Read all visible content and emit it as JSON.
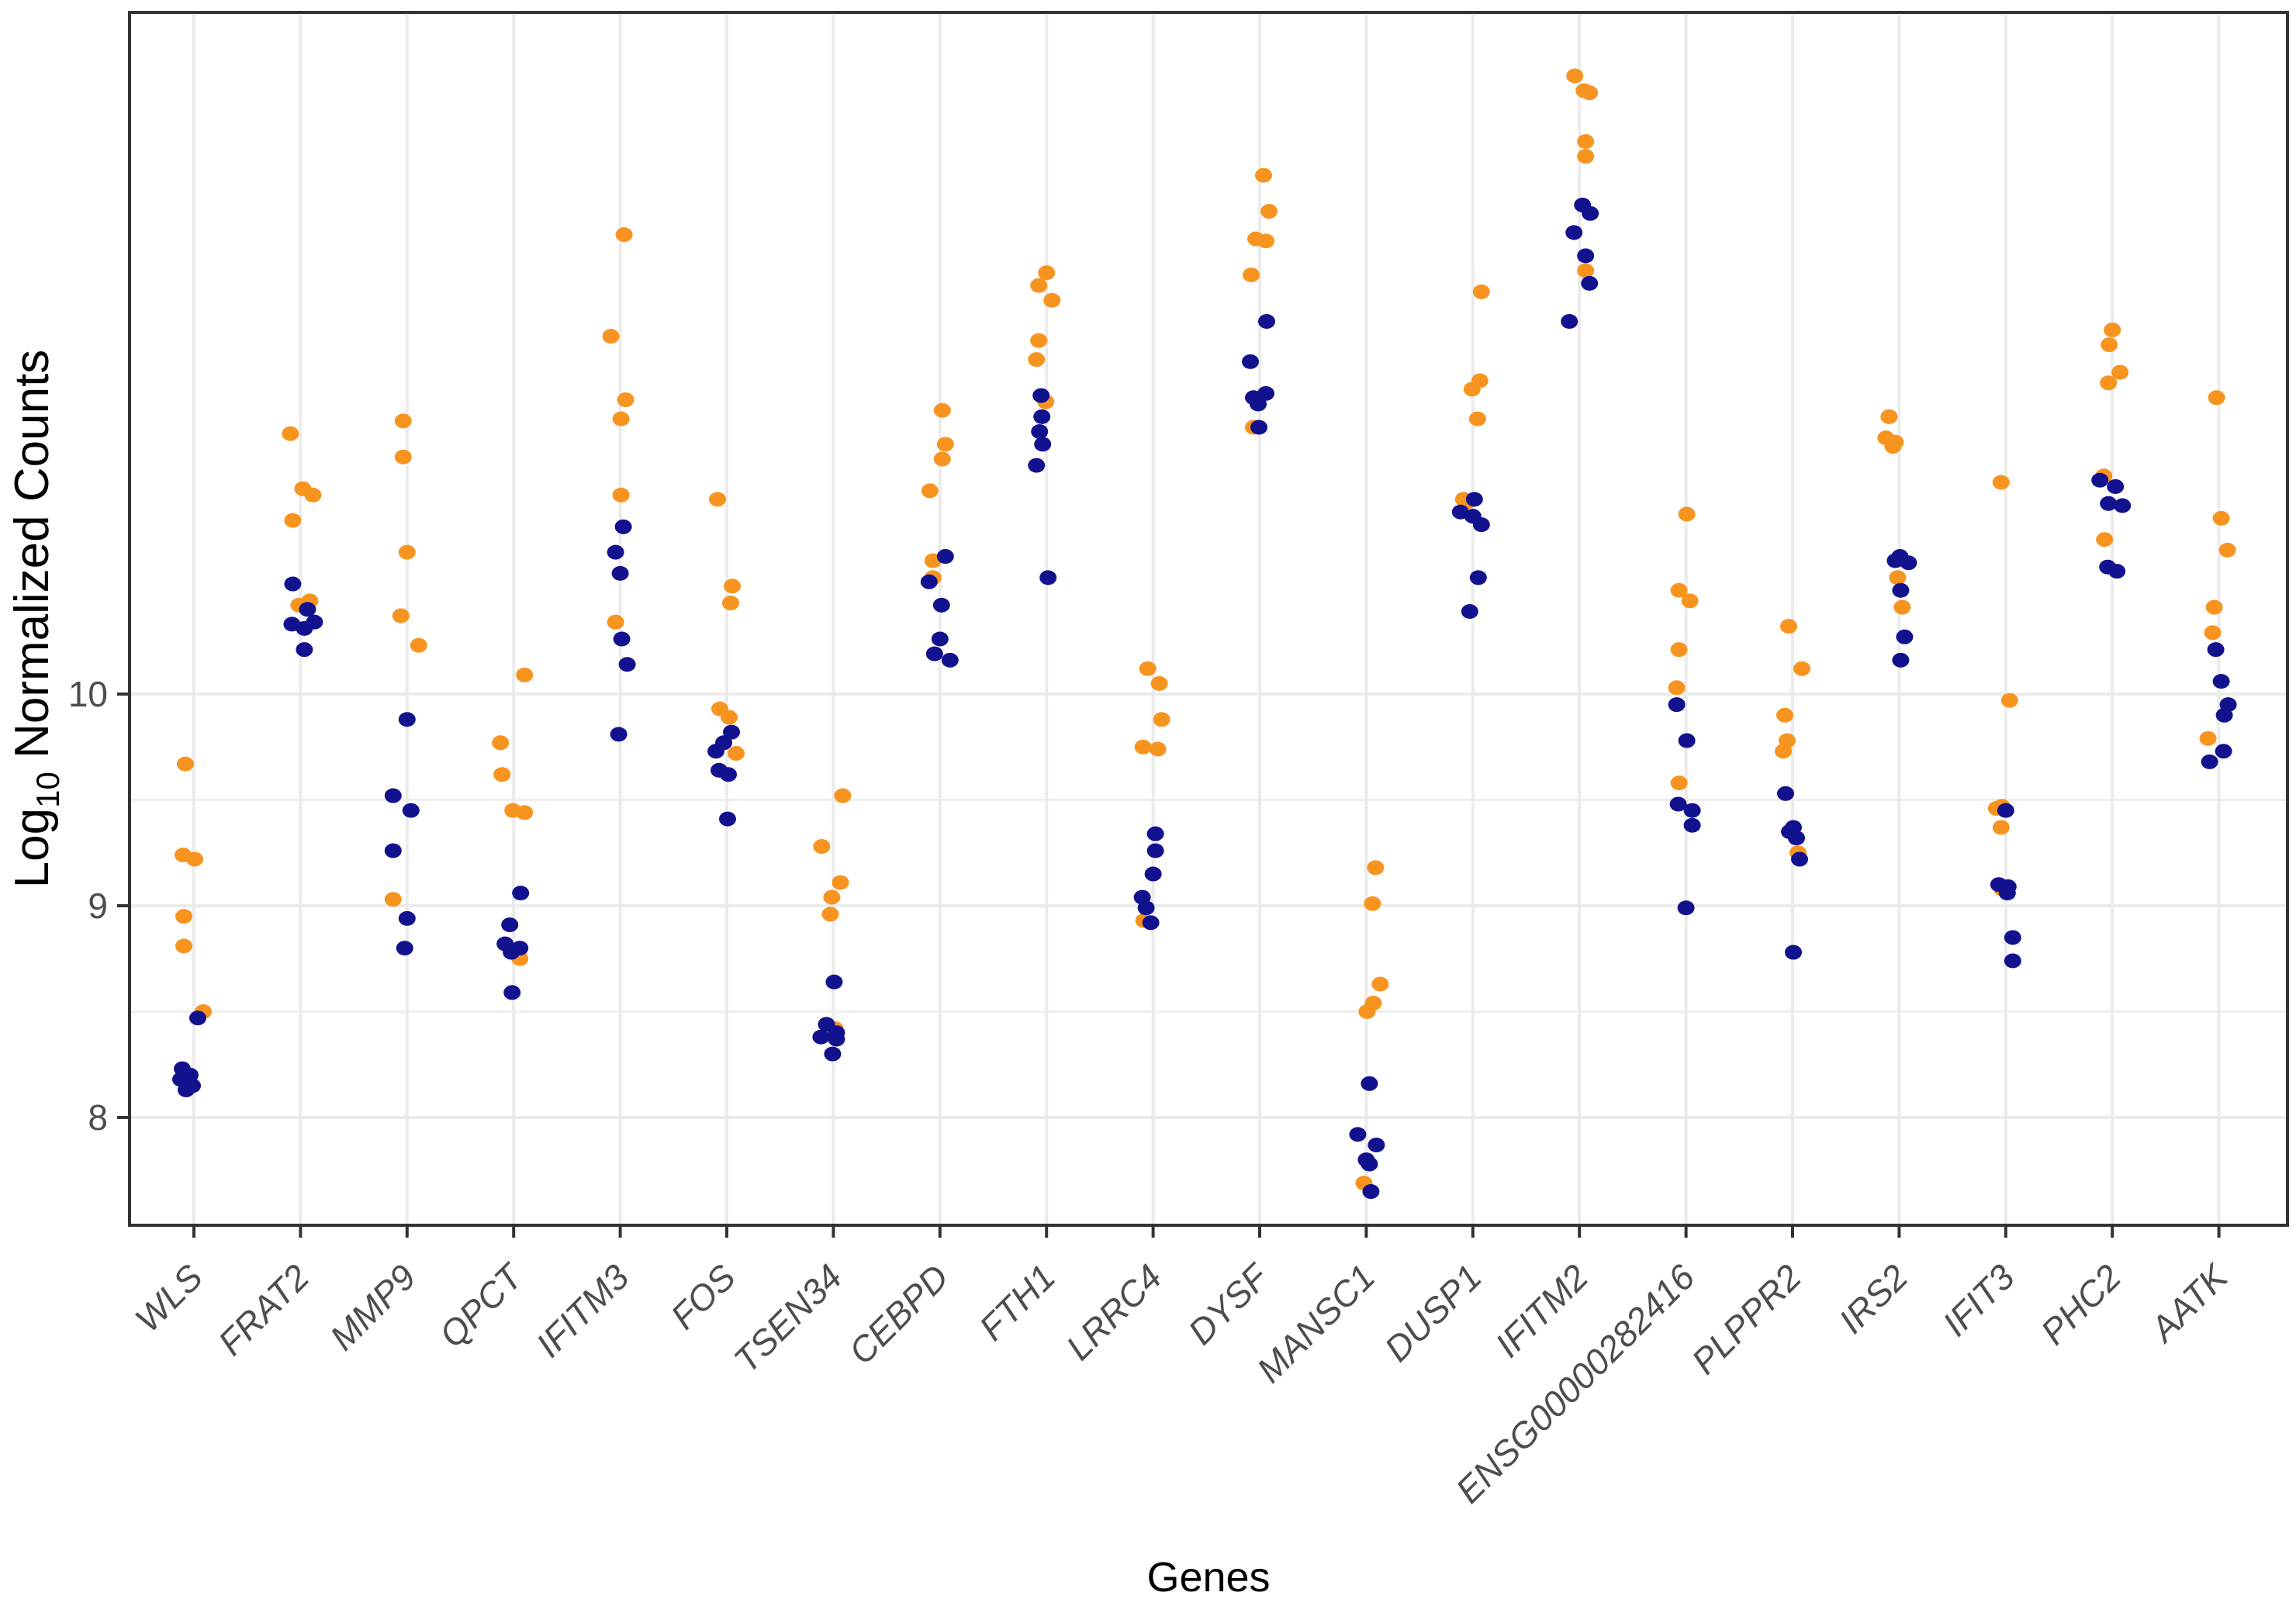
{
  "figure": {
    "ylabel_prefix": "Log",
    "ylabel_sub": "10",
    "ylabel_suffix": " Normalized Counts",
    "xlabel": "Genes"
  },
  "chart_data": {
    "type": "scatter",
    "subtype": "strip-jitter",
    "title": "",
    "xlabel": "Genes",
    "ylabel": "Log10 Normalized Counts",
    "legend": "none",
    "grid": true,
    "y_axis": {
      "ticks": [
        8,
        9,
        10
      ],
      "minor_ticks": [
        8.5,
        9.5
      ],
      "range": [
        7.49,
        13.22
      ]
    },
    "colors": {
      "orange": "#F79420",
      "navy": "#12128F",
      "gridline": "#EBEBEB",
      "axis_text": "#4D4D4D",
      "border": "#333333"
    },
    "series_names": {
      "orange": "orange-points",
      "navy": "navy-points"
    },
    "genes": [
      {
        "name": "WLS",
        "orange": [
          [
            9.67,
            -11
          ],
          [
            9.24,
            -14
          ],
          [
            9.22,
            1
          ],
          [
            8.95,
            -13
          ],
          [
            8.81,
            -13
          ],
          [
            8.5,
            12
          ]
        ],
        "blue": [
          [
            8.47,
            5
          ],
          [
            8.23,
            -15
          ],
          [
            8.2,
            -5
          ],
          [
            8.18,
            -17
          ],
          [
            8.15,
            -2
          ],
          [
            8.13,
            -10
          ]
        ]
      },
      {
        "name": "FRAT2",
        "orange": [
          [
            11.23,
            -13
          ],
          [
            10.97,
            3
          ],
          [
            10.94,
            16
          ],
          [
            10.82,
            -10
          ],
          [
            10.44,
            12
          ],
          [
            10.42,
            -2
          ]
        ],
        "blue": [
          [
            10.52,
            -10
          ],
          [
            10.4,
            9
          ],
          [
            10.34,
            18
          ],
          [
            10.33,
            -11
          ],
          [
            10.31,
            5
          ],
          [
            10.21,
            5
          ]
        ]
      },
      {
        "name": "MMP9",
        "orange": [
          [
            11.29,
            -5
          ],
          [
            11.12,
            -5
          ],
          [
            10.67,
            0
          ],
          [
            10.37,
            -8
          ],
          [
            10.23,
            15
          ],
          [
            9.03,
            -18
          ]
        ],
        "blue": [
          [
            9.88,
            0
          ],
          [
            9.52,
            -18
          ],
          [
            9.45,
            5
          ],
          [
            9.26,
            -18
          ],
          [
            8.94,
            0
          ],
          [
            8.8,
            -3
          ]
        ]
      },
      {
        "name": "QPCT",
        "orange": [
          [
            10.09,
            14
          ],
          [
            9.77,
            -17
          ],
          [
            9.62,
            -15
          ],
          [
            9.45,
            -1
          ],
          [
            9.44,
            14
          ],
          [
            8.75,
            8
          ]
        ],
        "blue": [
          [
            9.06,
            9
          ],
          [
            8.91,
            -5
          ],
          [
            8.82,
            -11
          ],
          [
            8.8,
            8
          ],
          [
            8.78,
            -3
          ],
          [
            8.59,
            -2
          ]
        ]
      },
      {
        "name": "IFITM3",
        "orange": [
          [
            12.17,
            5
          ],
          [
            11.69,
            -12
          ],
          [
            11.39,
            7
          ],
          [
            11.3,
            1
          ],
          [
            10.94,
            1
          ],
          [
            10.34,
            -6
          ]
        ],
        "blue": [
          [
            10.79,
            4
          ],
          [
            10.67,
            -6
          ],
          [
            10.57,
            0
          ],
          [
            10.26,
            2
          ],
          [
            10.14,
            9
          ],
          [
            9.81,
            -2
          ]
        ]
      },
      {
        "name": "FOS",
        "orange": [
          [
            10.92,
            -12
          ],
          [
            10.51,
            7
          ],
          [
            10.43,
            5
          ],
          [
            9.93,
            -9
          ],
          [
            9.89,
            3
          ],
          [
            9.72,
            12
          ]
        ],
        "blue": [
          [
            9.82,
            6
          ],
          [
            9.77,
            -4
          ],
          [
            9.73,
            -14
          ],
          [
            9.64,
            -10
          ],
          [
            9.62,
            2
          ],
          [
            9.41,
            1
          ]
        ]
      },
      {
        "name": "TSEN34",
        "orange": [
          [
            9.52,
            12
          ],
          [
            9.28,
            -15
          ],
          [
            9.11,
            9
          ],
          [
            9.04,
            -2
          ],
          [
            8.96,
            -4
          ],
          [
            8.42,
            2
          ]
        ],
        "blue": [
          [
            8.64,
            1
          ],
          [
            8.44,
            -9
          ],
          [
            8.4,
            4
          ],
          [
            8.38,
            -16
          ],
          [
            8.37,
            4
          ],
          [
            8.3,
            -1
          ]
        ]
      },
      {
        "name": "CEBPD",
        "orange": [
          [
            11.34,
            3
          ],
          [
            11.18,
            7
          ],
          [
            11.11,
            3
          ],
          [
            10.96,
            -13
          ],
          [
            10.63,
            -9
          ],
          [
            10.55,
            -9
          ]
        ],
        "blue": [
          [
            10.65,
            7
          ],
          [
            10.53,
            -14
          ],
          [
            10.42,
            2
          ],
          [
            10.26,
            0
          ],
          [
            10.19,
            -7
          ],
          [
            10.16,
            13
          ]
        ]
      },
      {
        "name": "FTH1",
        "orange": [
          [
            11.99,
            0
          ],
          [
            11.93,
            -10
          ],
          [
            11.86,
            7
          ],
          [
            11.67,
            -10
          ],
          [
            11.58,
            -13
          ],
          [
            11.38,
            -1
          ]
        ],
        "blue": [
          [
            11.41,
            -7
          ],
          [
            11.31,
            -6
          ],
          [
            11.24,
            -9
          ],
          [
            11.18,
            -5
          ],
          [
            11.08,
            -13
          ],
          [
            10.55,
            2
          ]
        ]
      },
      {
        "name": "LRRC4",
        "orange": [
          [
            10.12,
            -7
          ],
          [
            10.05,
            8
          ],
          [
            9.88,
            11
          ],
          [
            9.75,
            -13
          ],
          [
            9.74,
            6
          ],
          [
            8.93,
            -12
          ]
        ],
        "blue": [
          [
            9.34,
            3
          ],
          [
            9.26,
            3
          ],
          [
            9.15,
            0
          ],
          [
            9.04,
            -14
          ],
          [
            8.99,
            -9
          ],
          [
            8.92,
            -3
          ]
        ]
      },
      {
        "name": "DYSF",
        "orange": [
          [
            12.45,
            5
          ],
          [
            12.28,
            12
          ],
          [
            12.15,
            -5
          ],
          [
            12.14,
            8
          ],
          [
            11.98,
            -11
          ],
          [
            11.26,
            -8
          ]
        ],
        "blue": [
          [
            11.76,
            9
          ],
          [
            11.57,
            -12
          ],
          [
            11.42,
            8
          ],
          [
            11.4,
            -8
          ],
          [
            11.37,
            -2
          ],
          [
            11.26,
            -1
          ]
        ]
      },
      {
        "name": "MANSC1",
        "orange": [
          [
            9.18,
            12
          ],
          [
            9.01,
            8
          ],
          [
            8.63,
            18
          ],
          [
            8.54,
            9
          ],
          [
            8.5,
            1
          ],
          [
            7.69,
            -3
          ]
        ],
        "blue": [
          [
            8.16,
            4
          ],
          [
            7.92,
            -11
          ],
          [
            7.87,
            13
          ],
          [
            7.8,
            0
          ],
          [
            7.78,
            4
          ],
          [
            7.65,
            6
          ]
        ]
      },
      {
        "name": "DUSP1",
        "orange": [
          [
            11.9,
            11
          ],
          [
            11.48,
            9
          ],
          [
            11.44,
            -1
          ],
          [
            11.3,
            6
          ],
          [
            10.92,
            -12
          ],
          [
            10.91,
            -6
          ]
        ],
        "blue": [
          [
            10.92,
            2
          ],
          [
            10.86,
            -16
          ],
          [
            10.84,
            0
          ],
          [
            10.8,
            11
          ],
          [
            10.55,
            7
          ],
          [
            10.39,
            -4
          ]
        ]
      },
      {
        "name": "IFITM2",
        "orange": [
          [
            12.92,
            -6
          ],
          [
            12.85,
            6
          ],
          [
            12.84,
            13
          ],
          [
            12.61,
            8
          ],
          [
            12.54,
            8
          ],
          [
            12.0,
            8
          ]
        ],
        "blue": [
          [
            12.31,
            4
          ],
          [
            12.27,
            14
          ],
          [
            12.18,
            -7
          ],
          [
            12.07,
            8
          ],
          [
            11.94,
            13
          ],
          [
            11.76,
            -13
          ]
        ]
      },
      {
        "name": "ENSG00000282416",
        "orange": [
          [
            10.85,
            1
          ],
          [
            10.49,
            -9
          ],
          [
            10.44,
            5
          ],
          [
            10.21,
            -9
          ],
          [
            10.03,
            -12
          ],
          [
            9.58,
            -9
          ]
        ],
        "blue": [
          [
            9.95,
            -12
          ],
          [
            9.78,
            1
          ],
          [
            9.48,
            -10
          ],
          [
            9.45,
            8
          ],
          [
            9.38,
            8
          ],
          [
            8.99,
            0
          ]
        ]
      },
      {
        "name": "PLPPR2",
        "orange": [
          [
            10.32,
            -5
          ],
          [
            10.12,
            12
          ],
          [
            9.9,
            -10
          ],
          [
            9.78,
            -7
          ],
          [
            9.73,
            -12
          ],
          [
            9.25,
            7
          ]
        ],
        "blue": [
          [
            9.53,
            -9
          ],
          [
            9.37,
            1
          ],
          [
            9.35,
            -4
          ],
          [
            9.32,
            5
          ],
          [
            9.22,
            9
          ],
          [
            8.78,
            1
          ]
        ]
      },
      {
        "name": "IRS2",
        "orange": [
          [
            11.31,
            -13
          ],
          [
            11.21,
            -17
          ],
          [
            11.19,
            -5
          ],
          [
            11.17,
            -8
          ],
          [
            10.55,
            -2
          ],
          [
            10.41,
            4
          ]
        ],
        "blue": [
          [
            10.65,
            1
          ],
          [
            10.63,
            -5
          ],
          [
            10.62,
            12
          ],
          [
            10.49,
            2
          ],
          [
            10.27,
            7
          ],
          [
            10.16,
            2
          ]
        ]
      },
      {
        "name": "IFIT3",
        "orange": [
          [
            11.0,
            -6
          ],
          [
            9.97,
            5
          ],
          [
            9.47,
            -5
          ],
          [
            9.46,
            -12
          ],
          [
            9.37,
            -6
          ],
          [
            9.08,
            -5
          ]
        ],
        "blue": [
          [
            9.45,
            0
          ],
          [
            9.1,
            -9
          ],
          [
            9.09,
            3
          ],
          [
            9.06,
            2
          ],
          [
            8.85,
            9
          ],
          [
            8.74,
            9
          ]
        ]
      },
      {
        "name": "PHC2",
        "orange": [
          [
            11.72,
            0
          ],
          [
            11.65,
            -4
          ],
          [
            11.52,
            10
          ],
          [
            11.47,
            -5
          ],
          [
            11.03,
            -11
          ],
          [
            10.73,
            -10
          ]
        ],
        "blue": [
          [
            11.01,
            -16
          ],
          [
            10.98,
            4
          ],
          [
            10.9,
            -5
          ],
          [
            10.89,
            13
          ],
          [
            10.6,
            -6
          ],
          [
            10.58,
            6
          ]
        ]
      },
      {
        "name": "AATK",
        "orange": [
          [
            11.4,
            -3
          ],
          [
            10.83,
            3
          ],
          [
            10.68,
            11
          ],
          [
            10.41,
            -6
          ],
          [
            10.29,
            -8
          ],
          [
            9.79,
            -14
          ]
        ],
        "blue": [
          [
            10.21,
            -4
          ],
          [
            10.06,
            3
          ],
          [
            9.95,
            12
          ],
          [
            9.9,
            7
          ],
          [
            9.73,
            6
          ],
          [
            9.68,
            -12
          ]
        ]
      }
    ]
  }
}
